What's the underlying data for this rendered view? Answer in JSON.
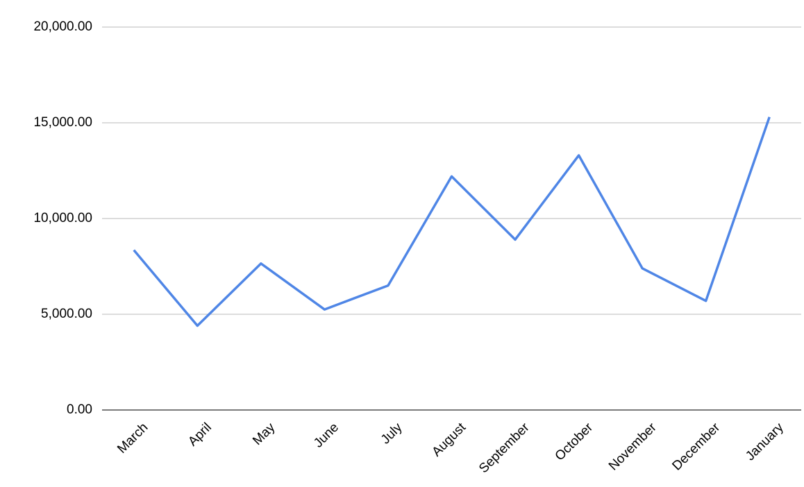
{
  "chart_data": {
    "type": "line",
    "categories": [
      "March",
      "April",
      "May",
      "June",
      "July",
      "August",
      "September",
      "October",
      "November",
      "December",
      "January"
    ],
    "values": [
      8350,
      4400,
      7650,
      5250,
      6500,
      12200,
      8900,
      13300,
      7400,
      5700,
      15300
    ],
    "color": "#4f86e6",
    "ylim": [
      0,
      20000
    ],
    "yticks": [
      {
        "value": 0,
        "label": "0.00"
      },
      {
        "value": 5000,
        "label": "5,000.00"
      },
      {
        "value": 10000,
        "label": "10,000.00"
      },
      {
        "value": 15000,
        "label": "15,000.00"
      },
      {
        "value": 20000,
        "label": "20,000.00"
      }
    ],
    "grid": true
  }
}
